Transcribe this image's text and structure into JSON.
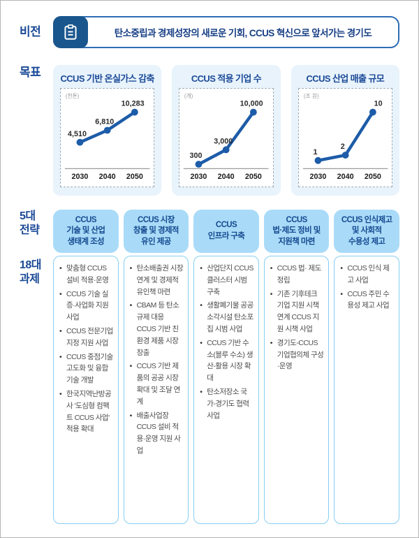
{
  "vision": {
    "label": "비전",
    "text": "탄소중립과 경제성장의 새로운 기회, CCUS 혁신으로 앞서가는 경기도"
  },
  "goals": {
    "label": "목표"
  },
  "chart_data": [
    {
      "type": "line",
      "title": "CCUS 기반 온실가스 감축",
      "unit": "(천톤)",
      "x": [
        "2030",
        "2040",
        "2050"
      ],
      "values": [
        4510,
        6810,
        10283
      ],
      "value_labels": [
        "4,510",
        "6,810",
        "10,283"
      ],
      "ylim": [
        0,
        10283
      ],
      "line_color": "#1d5ca8"
    },
    {
      "type": "line",
      "title": "CCUS 적용 기업 수",
      "unit": "(개)",
      "x": [
        "2030",
        "2040",
        "2050"
      ],
      "values": [
        300,
        3000,
        10000
      ],
      "value_labels": [
        "300",
        "3,000",
        "10,000"
      ],
      "ylim": [
        0,
        10000
      ],
      "line_color": "#1d5ca8"
    },
    {
      "type": "line",
      "title": "CCUS 산업 매출 규모",
      "unit": "(조 원)",
      "x": [
        "2030",
        "2040",
        "2050"
      ],
      "values": [
        1,
        2,
        10
      ],
      "value_labels": [
        "1",
        "2",
        "10"
      ],
      "ylim": [
        0,
        10
      ],
      "line_color": "#1d5ca8"
    }
  ],
  "strategies": {
    "label_top": "5대\n전략",
    "label_bottom": "18대\n과제",
    "columns": [
      {
        "header": "CCUS\n기술 및 산업\n생태계 조성",
        "items": [
          "맞춤형 CCUS 설비 적용·운영",
          "CCUS 기술 실증·사업화 지원 사업",
          "CCUS 전문기업 지정 지원 사업",
          "CCUS 중점기술 고도화 및 융합기술 개발",
          "한국지역난방공사 '도심형 컴팩트 CCUS 사업' 적용 확대"
        ]
      },
      {
        "header": "CCUS 시장\n창출 및 경제적\n유인 제공",
        "items": [
          "탄소배출권 시장 연계 및 경제적 유인책 마련",
          "CBAM 등 탄소규제 대응 CCUS 기반 친환경 제품 시장 창출",
          "CCUS 기반 제품의 공공 시장 확대 및 조달 연계",
          "배출사업장 CCUS 설비 적용·운영 지원 사업"
        ]
      },
      {
        "header": "CCUS\n인프라 구축",
        "items": [
          "산업단지 CCUS 클러스터 시범 구축",
          "생활폐기물 공공소각시설 탄소포집 시범 사업",
          "CCUS 기반 수소(블루 수소) 생산-활용 시장 확대",
          "탄소저장소 국가-경기도 협력 사업"
        ]
      },
      {
        "header": "CCUS\n법·제도 정비 및\n지원책 마련",
        "items": [
          "CCUS 법· 제도 정립",
          "기존 기후테크 기업 지원 시책 연계 CCUS 지원 시책 사업",
          "경기도-CCUS 기업협의체 구성·운영"
        ]
      },
      {
        "header": "CCUS 인식제고\n및 사회적\n수용성 제고",
        "items": [
          "CCUS 인식 제고 사업",
          "CCUS 주민 수용성 제고 사업"
        ]
      }
    ]
  },
  "colors": {
    "navy_text": "#1b4a97",
    "vision_border": "#2e6db4",
    "icon_bg": "#1a568e",
    "card_bg": "#e8f3fc",
    "header_bg": "#a9dbf8",
    "body_border": "#85cef2",
    "chart_line": "#1d5ca8"
  }
}
